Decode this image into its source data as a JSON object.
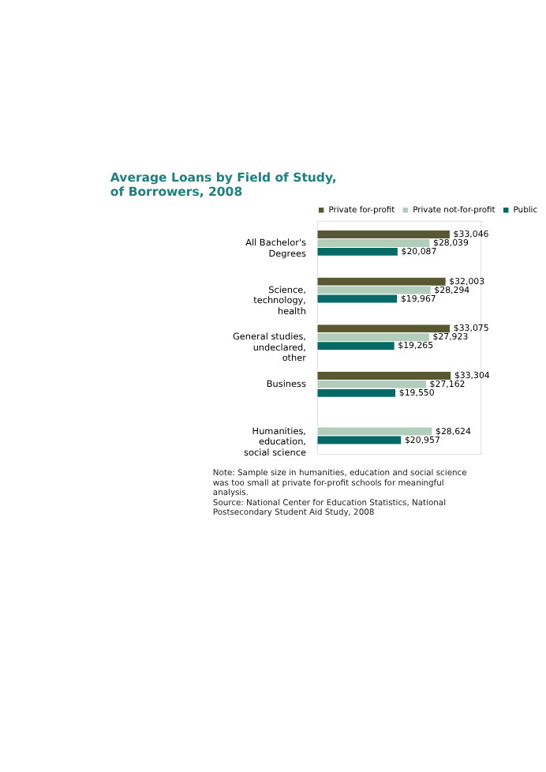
{
  "chart_data": {
    "type": "bar",
    "orientation": "horizontal",
    "title": "Average Loans by Field of Study, of Borrowers, 2008",
    "categories": [
      "All Bachelor's Degrees",
      "Science, technology, health",
      "General studies, undeclared, other",
      "Business",
      "Humanities, education, social science"
    ],
    "series": [
      {
        "name": "Private for-profit",
        "color": "#585832",
        "values": [
          33046,
          32003,
          33075,
          33304,
          null
        ],
        "value_labels": [
          "$33,046",
          "$32,003",
          "$33,075",
          "$33,304",
          null
        ]
      },
      {
        "name": "Private not-for-profit",
        "color": "#b3cdbb",
        "values": [
          28039,
          28294,
          27923,
          27162,
          28624
        ],
        "value_labels": [
          "$28,039",
          "$28,294",
          "$27,923",
          "$27,162",
          "$28,624"
        ]
      },
      {
        "name": "Public",
        "color": "#056a66",
        "values": [
          20087,
          19967,
          19265,
          19550,
          20957
        ],
        "value_labels": [
          "$20,087",
          "$19,967",
          "$19,265",
          "$19,550",
          "$20,957"
        ]
      }
    ],
    "legend": "top",
    "tick_labels": "y",
    "annotations": [
      "Note: Sample size in humanities, education and social science was too small at private for-profit schools for meaningful analysis.",
      "Source: National Center for Education Statistics, National Postsecondary Student Aid Study, 2008"
    ]
  }
}
